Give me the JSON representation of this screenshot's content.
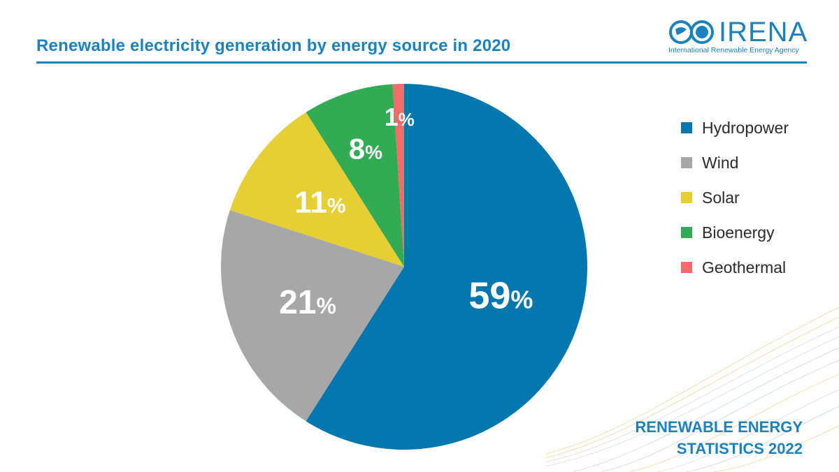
{
  "header": {
    "title": "Renewable electricity generation by energy source in 2020"
  },
  "logo": {
    "wordmark": "IRENA",
    "tagline": "International Renewable Energy Agency",
    "icon": "irena-globe-icon"
  },
  "footer": {
    "line1": "RENEWABLE ENERGY",
    "line2": "STATISTICS 2022"
  },
  "chart_data": {
    "type": "pie",
    "title": "Renewable electricity generation by energy source in 2020",
    "categories": [
      "Hydropower",
      "Wind",
      "Solar",
      "Bioenergy",
      "Geothermal"
    ],
    "values": [
      59,
      21,
      11,
      8,
      1
    ],
    "unit": "%",
    "colors": [
      "#0477ae",
      "#a7a7a7",
      "#e5cf35",
      "#33ab55",
      "#f36b6b"
    ],
    "legend": "right"
  }
}
